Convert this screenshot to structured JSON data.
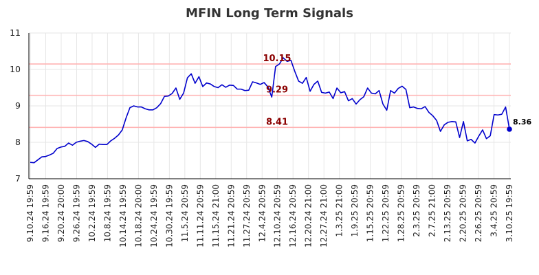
{
  "chart_data": {
    "type": "line",
    "title": "MFIN Long Term Signals",
    "xlabel": "",
    "ylabel": "",
    "ylim": [
      7,
      11
    ],
    "yticks": [
      7,
      8,
      9,
      10,
      11
    ],
    "grid": true,
    "x_tick_labels": [
      "9.10.24 19:59",
      "9.16.24 19:59",
      "9.20.24 20:00",
      "9.26.24 19:59",
      "10.2.24 19:59",
      "10.8.24 19:59",
      "10.14.24 19:59",
      "10.18.24 20:00",
      "10.24.24 19:59",
      "10.30.24 19:59",
      "11.5.24 20:59",
      "11.11.24 20:59",
      "11.15.24 21:00",
      "11.21.24 20:59",
      "11.27.24 20:59",
      "12.4.24 20:59",
      "12.10.24 20:59",
      "12.16.24 20:59",
      "12.20.24 21:00",
      "12.27.24 21:00",
      "1.3.25 21:00",
      "1.9.25 20:59",
      "1.15.25 20:59",
      "1.22.25 20:59",
      "1.28.25 20:59",
      "2.3.25 20:59",
      "2.7.25 21:00",
      "2.13.25 20:59",
      "2.20.25 20:59",
      "2.26.25 20:59",
      "3.4.25 20:59",
      "3.10.25 19:59"
    ],
    "series": [
      {
        "color": "#0000cc",
        "values": [
          7.45,
          7.44,
          7.52,
          7.6,
          7.61,
          7.65,
          7.7,
          7.83,
          7.87,
          7.89,
          7.98,
          7.92,
          8.0,
          8.03,
          8.05,
          8.02,
          7.95,
          7.86,
          7.95,
          7.94,
          7.94,
          8.04,
          8.11,
          8.2,
          8.34,
          8.67,
          8.95,
          9.0,
          8.97,
          8.97,
          8.92,
          8.89,
          8.89,
          8.95,
          9.06,
          9.26,
          9.27,
          9.34,
          9.49,
          9.18,
          9.35,
          9.77,
          9.88,
          9.62,
          9.8,
          9.53,
          9.63,
          9.6,
          9.53,
          9.5,
          9.58,
          9.51,
          9.57,
          9.56,
          9.46,
          9.46,
          9.42,
          9.43,
          9.66,
          9.63,
          9.59,
          9.64,
          9.52,
          9.24,
          10.08,
          10.15,
          10.32,
          10.22,
          10.25,
          9.95,
          9.68,
          9.62,
          9.78,
          9.4,
          9.59,
          9.68,
          9.37,
          9.35,
          9.38,
          9.2,
          9.49,
          9.36,
          9.39,
          9.14,
          9.2,
          9.05,
          9.17,
          9.25,
          9.49,
          9.35,
          9.33,
          9.42,
          9.05,
          8.88,
          9.42,
          9.35,
          9.48,
          9.54,
          9.45,
          8.95,
          8.97,
          8.93,
          8.92,
          8.98,
          8.82,
          8.73,
          8.6,
          8.3,
          8.48,
          8.55,
          8.57,
          8.56,
          8.13,
          8.57,
          8.04,
          8.08,
          7.98,
          8.17,
          8.34,
          8.1,
          8.18,
          8.76,
          8.75,
          8.77,
          8.97,
          8.36
        ]
      }
    ],
    "levels": [
      {
        "value": 10.15,
        "label": "10.15"
      },
      {
        "value": 9.29,
        "label": "9.29"
      },
      {
        "value": 8.41,
        "label": "8.41"
      }
    ],
    "last_value": {
      "value": 8.36,
      "label": "8.36"
    },
    "colors": {
      "line": "#0000cc",
      "level_line": "#ffb3b3",
      "level_label": "#8b0000",
      "grid": "#e6e6e6",
      "axis": "#000000"
    }
  }
}
